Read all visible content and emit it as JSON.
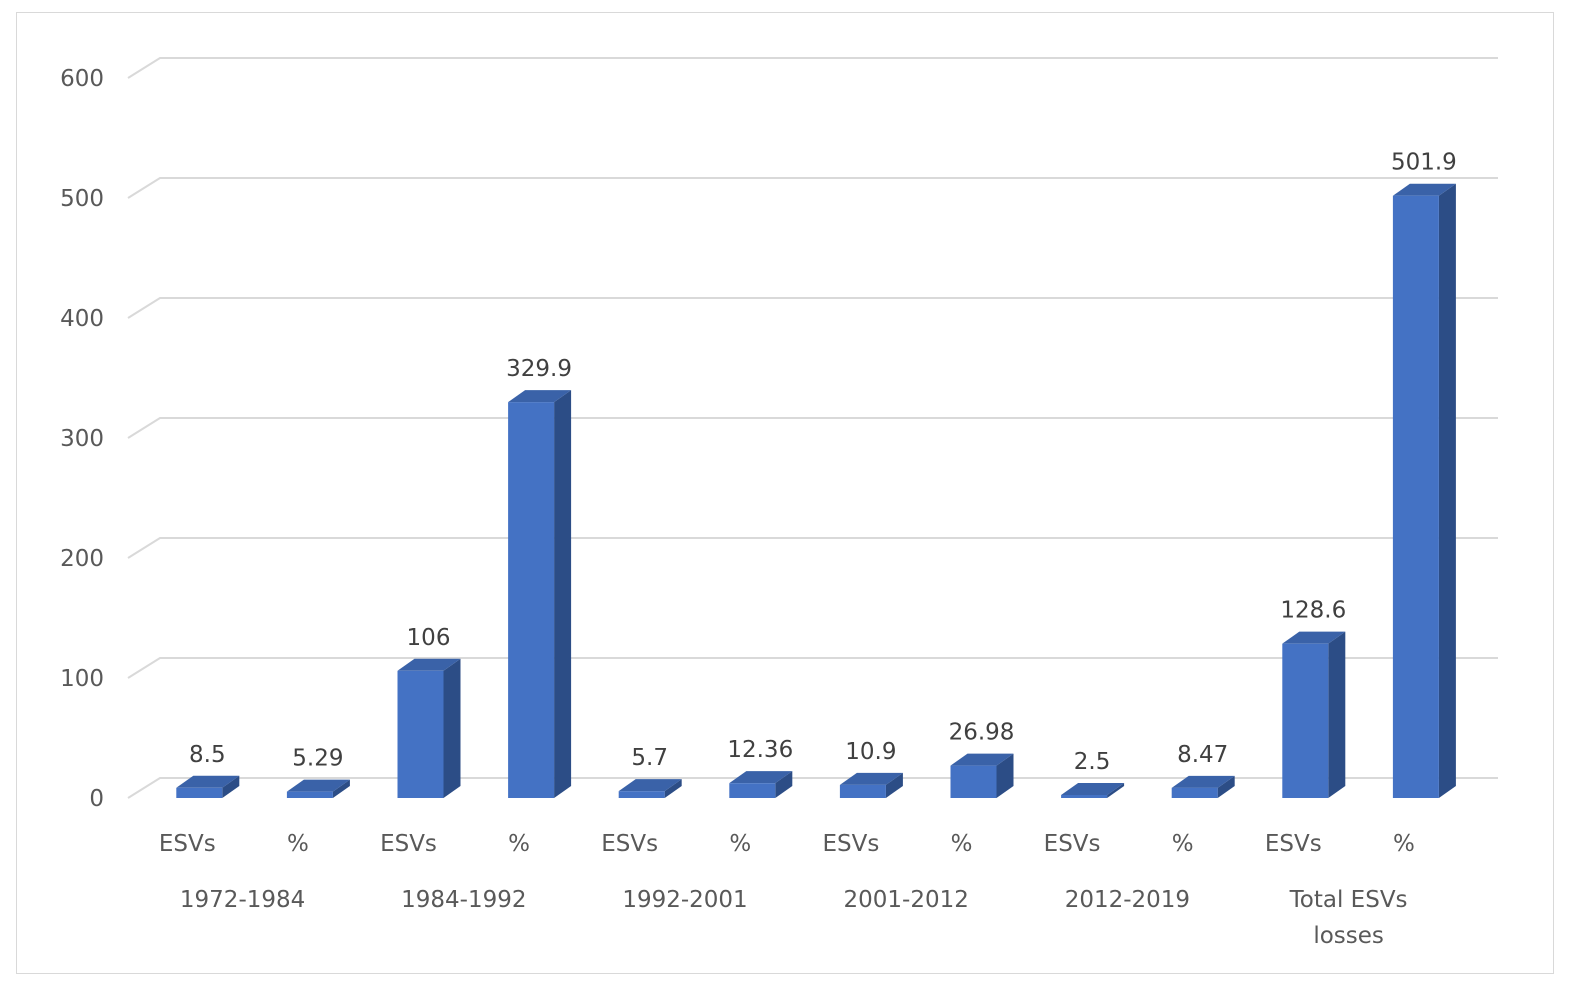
{
  "chart_data": {
    "type": "bar",
    "style": "3d-column",
    "title": "",
    "xlabel": "",
    "ylabel": "",
    "ylim": [
      0,
      600
    ],
    "yticks": [
      0,
      100,
      200,
      300,
      400,
      500,
      600
    ],
    "grid": true,
    "legend": "none",
    "bar_color": "#4472c4",
    "groups": [
      {
        "label": "1972-1984",
        "bars": [
          {
            "category": "ESVs",
            "value": 8.5,
            "label": "8.5"
          },
          {
            "category": "%",
            "value": 5.29,
            "label": "5.29"
          }
        ]
      },
      {
        "label": "1984-1992",
        "bars": [
          {
            "category": "ESVs",
            "value": 106,
            "label": "106"
          },
          {
            "category": "%",
            "value": 329.9,
            "label": "329.9"
          }
        ]
      },
      {
        "label": "1992-2001",
        "bars": [
          {
            "category": "ESVs",
            "value": 5.7,
            "label": "5.7"
          },
          {
            "category": "%",
            "value": 12.36,
            "label": "12.36"
          }
        ]
      },
      {
        "label": "2001-2012",
        "bars": [
          {
            "category": "ESVs",
            "value": 10.9,
            "label": "10.9"
          },
          {
            "category": "%",
            "value": 26.98,
            "label": "26.98"
          }
        ]
      },
      {
        "label": "2012-2019",
        "bars": [
          {
            "category": "ESVs",
            "value": 2.5,
            "label": "2.5"
          },
          {
            "category": "%",
            "value": 8.47,
            "label": "8.47"
          }
        ]
      },
      {
        "label": "Total ESVs losses",
        "label_lines": [
          "Total ESVs",
          "losses"
        ],
        "bars": [
          {
            "category": "ESVs",
            "value": 128.6,
            "label": "128.6"
          },
          {
            "category": "%",
            "value": 501.9,
            "label": "501.9"
          }
        ]
      }
    ]
  }
}
